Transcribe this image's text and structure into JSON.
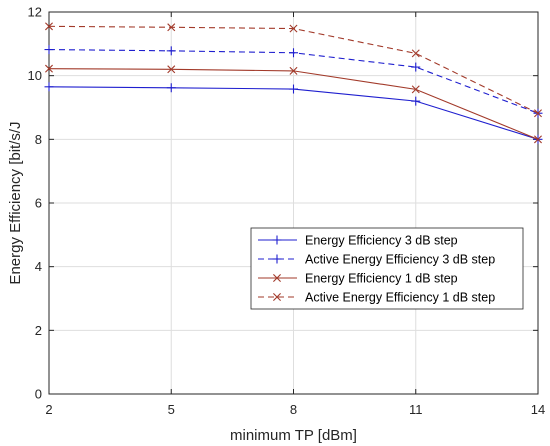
{
  "chart_data": {
    "type": "line",
    "title": "",
    "xlabel": "minimum TP [dBm]",
    "ylabel": "Energy Efficiency [bit/s/J",
    "x": [
      2,
      5,
      8,
      11,
      14
    ],
    "xticks": [
      "2",
      "5",
      "8",
      "11",
      "14"
    ],
    "yticks": [
      "0",
      "2",
      "4",
      "6",
      "8",
      "10",
      "12"
    ],
    "xlim": [
      2,
      14
    ],
    "ylim": [
      0,
      12
    ],
    "grid": true,
    "legend_position": "center-right",
    "series": [
      {
        "name": "Energy Efficiency 3 dB step",
        "values": [
          9.65,
          9.62,
          9.58,
          9.2,
          8.0
        ],
        "color": "#1f1fcf",
        "dash": "solid",
        "marker": "plus"
      },
      {
        "name": "Active Energy Efficiency 3 dB step",
        "values": [
          10.82,
          10.78,
          10.72,
          10.27,
          8.82
        ],
        "color": "#1f1fcf",
        "dash": "dashed",
        "marker": "plus"
      },
      {
        "name": "Energy Efficiency 1 dB step",
        "values": [
          10.22,
          10.2,
          10.15,
          9.57,
          8.0
        ],
        "color": "#a23a2a",
        "dash": "solid",
        "marker": "x"
      },
      {
        "name": "Active Energy Efficiency 1 dB step",
        "values": [
          11.55,
          11.52,
          11.48,
          10.7,
          8.82
        ],
        "color": "#a23a2a",
        "dash": "dashed",
        "marker": "x"
      }
    ]
  }
}
